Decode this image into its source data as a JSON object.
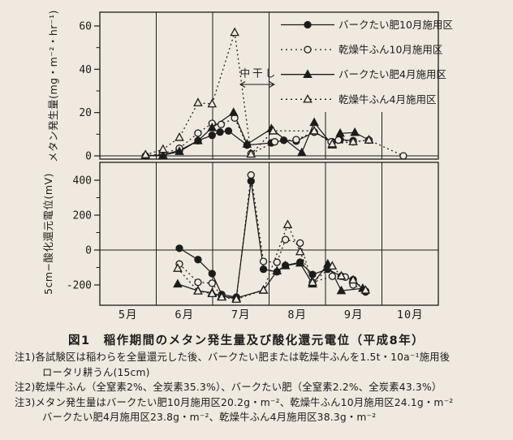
{
  "figure": {
    "caption": "図1　稲作期間のメタン発生量及び酸化還元電位（平成8年）",
    "notes": [
      "注1)各試験区は稲わらを全量還元した後、バークたい肥または乾燥牛ふんを1.5t・10a⁻¹施用後",
      "ロータリ耕うん(15cm)",
      "注2)乾燥牛ふん（全窒素2%、全炭素35.3%）、バークたい肥（全窒素2.2%、全炭素43.3%）",
      "注3)メタン発生量はバークたい肥10月施用区20.2g・m⁻²、乾燥牛ふん10月施用区24.1g・m⁻²",
      "バークたい肥4月施用区23.8g・m⁻²、乾燥牛ふん4月施用区38.3g・m⁻²"
    ],
    "colors": {
      "paper": "#efe9df",
      "ink": "#1c1c1c"
    }
  },
  "chart_data": [
    {
      "type": "line",
      "panel": "methane-flux",
      "ylabel": "メタン発生量(mg・m⁻²・hr⁻¹)",
      "ylim": [
        0,
        66
      ],
      "yticks": [
        0,
        20,
        40,
        60
      ],
      "yticks_minor": [
        10,
        30,
        50
      ],
      "xlim_months": [
        5,
        11
      ],
      "x_month_labels": [
        "5月",
        "6月",
        "7月",
        "8月",
        "9月",
        "10月"
      ],
      "x_unit": "month (5 = May 1, 6 = Jun 1, ...)",
      "grid": "vertical month boundary lines",
      "legend_position": "top-right overlay",
      "annotation": {
        "text": "中干し",
        "arrow_from_month": 7.49,
        "arrow_to_month": 8.09,
        "arrow_value": 33,
        "text_value": 36.5
      },
      "series": [
        {
          "name": "バークたい肥10月施用区",
          "marker": "filled-circle",
          "line": "solid",
          "points": [
            [
              5.81,
              0
            ],
            [
              6.12,
              0.5
            ],
            [
              6.41,
              2.5
            ],
            [
              6.74,
              7
            ],
            [
              6.99,
              9.5
            ],
            [
              7.13,
              11
            ],
            [
              7.28,
              11.5
            ],
            [
              7.61,
              5
            ],
            [
              8.04,
              6
            ],
            [
              8.26,
              7.2
            ],
            [
              8.48,
              6.8
            ],
            [
              8.8,
              11
            ],
            [
              9.12,
              6.5
            ],
            [
              9.26,
              7.5
            ],
            [
              9.49,
              7
            ]
          ]
        },
        {
          "name": "乾燥牛ふん10月施用区",
          "marker": "open-circle",
          "line": "dotted",
          "points": [
            [
              5.81,
              0
            ],
            [
              6.12,
              1
            ],
            [
              6.41,
              3.5
            ],
            [
              6.74,
              10.5
            ],
            [
              6.99,
              15
            ],
            [
              7.15,
              14.5
            ],
            [
              7.39,
              17.5
            ],
            [
              7.68,
              1
            ],
            [
              8.1,
              6.5
            ],
            [
              8.48,
              7.5
            ],
            [
              8.8,
              11
            ],
            [
              9.1,
              6.5
            ],
            [
              9.23,
              7.3
            ],
            [
              9.49,
              6.5
            ],
            [
              9.77,
              7.3
            ],
            [
              10.38,
              0
            ]
          ]
        },
        {
          "name": "バークたい肥4月施用区",
          "marker": "filled-triangle",
          "line": "solid",
          "points": [
            [
              5.81,
              0
            ],
            [
              6.12,
              0.3
            ],
            [
              6.41,
              2
            ],
            [
              6.74,
              7
            ],
            [
              6.99,
              13
            ],
            [
              7.37,
              20
            ],
            [
              7.61,
              5.4
            ],
            [
              8.04,
              12.5
            ],
            [
              8.58,
              1.5
            ],
            [
              8.8,
              15.4
            ],
            [
              9.12,
              5
            ],
            [
              9.26,
              10.4
            ],
            [
              9.52,
              10.8
            ],
            [
              9.77,
              7.3
            ]
          ]
        },
        {
          "name": "乾燥牛ふん4月施用区",
          "marker": "open-triangle",
          "line": "dotted",
          "points": [
            [
              5.81,
              0.5
            ],
            [
              6.12,
              3
            ],
            [
              6.41,
              8.5
            ],
            [
              6.74,
              24.5
            ],
            [
              6.99,
              24
            ],
            [
              7.39,
              57
            ],
            [
              7.68,
              0.8
            ],
            [
              8.07,
              11.5
            ],
            [
              8.8,
              11.5
            ],
            [
              9.12,
              5.5
            ],
            [
              9.49,
              6.5
            ],
            [
              9.77,
              7.3
            ]
          ]
        }
      ]
    },
    {
      "type": "line",
      "panel": "redox-potential",
      "ylabel": "5cm−酸化還元電位(mV)",
      "ylim": [
        -315,
        500
      ],
      "yticks": [
        -200,
        0,
        200,
        400
      ],
      "yticks_minor": [
        -100,
        100,
        300
      ],
      "zero_line": true,
      "xlim_months": [
        5,
        11
      ],
      "x_unit": "month (5 = May 1, 6 = Jun 1, ...)",
      "series": [
        {
          "name": "バークたい肥10月施用区",
          "marker": "filled-circle",
          "line": "solid",
          "points": [
            [
              6.41,
              10
            ],
            [
              6.74,
              -55
            ],
            [
              6.99,
              -135
            ],
            [
              7.16,
              -255
            ],
            [
              7.42,
              -270
            ],
            [
              7.68,
              395
            ],
            [
              7.9,
              -110
            ],
            [
              8.14,
              -125
            ],
            [
              8.29,
              -88
            ],
            [
              8.55,
              -70
            ],
            [
              8.77,
              -140
            ],
            [
              9.04,
              -110
            ],
            [
              9.28,
              -150
            ],
            [
              9.49,
              -170
            ],
            [
              9.71,
              -240
            ]
          ]
        },
        {
          "name": "乾燥牛ふん10月施用区",
          "marker": "open-circle",
          "line": "dotted",
          "points": [
            [
              6.41,
              -80
            ],
            [
              6.74,
              -185
            ],
            [
              6.99,
              -190
            ],
            [
              7.16,
              -265
            ],
            [
              7.42,
              -280
            ],
            [
              7.68,
              430
            ],
            [
              7.9,
              -65
            ],
            [
              8.14,
              -70
            ],
            [
              8.29,
              60
            ],
            [
              8.55,
              40
            ],
            [
              8.77,
              -185
            ],
            [
              9.12,
              -150
            ],
            [
              9.35,
              -155
            ],
            [
              9.49,
              -200
            ],
            [
              9.71,
              -235
            ]
          ]
        },
        {
          "name": "バークたい肥4月施用区",
          "marker": "filled-triangle",
          "line": "solid",
          "points": [
            [
              6.38,
              -195
            ],
            [
              6.74,
              -233
            ],
            [
              6.99,
              -245
            ],
            [
              7.16,
              -265
            ],
            [
              7.42,
              -275
            ],
            [
              7.9,
              -230
            ],
            [
              8.14,
              -120
            ],
            [
              8.29,
              -90
            ],
            [
              8.55,
              -75
            ],
            [
              8.77,
              -195
            ],
            [
              9.04,
              -80
            ],
            [
              9.28,
              -233
            ],
            [
              9.66,
              -220
            ]
          ]
        },
        {
          "name": "乾燥牛ふん4月施用区",
          "marker": "open-triangle",
          "line": "dotted",
          "points": [
            [
              6.38,
              -105
            ],
            [
              6.74,
              -235
            ],
            [
              6.99,
              -250
            ],
            [
              7.16,
              -270
            ],
            [
              7.42,
              -282
            ],
            [
              7.9,
              -230
            ],
            [
              8.33,
              145
            ],
            [
              8.55,
              -10
            ],
            [
              8.77,
              -185
            ],
            [
              9.12,
              -92
            ],
            [
              9.28,
              -149
            ],
            [
              9.49,
              -172
            ],
            [
              9.71,
              -230
            ]
          ]
        }
      ]
    }
  ]
}
